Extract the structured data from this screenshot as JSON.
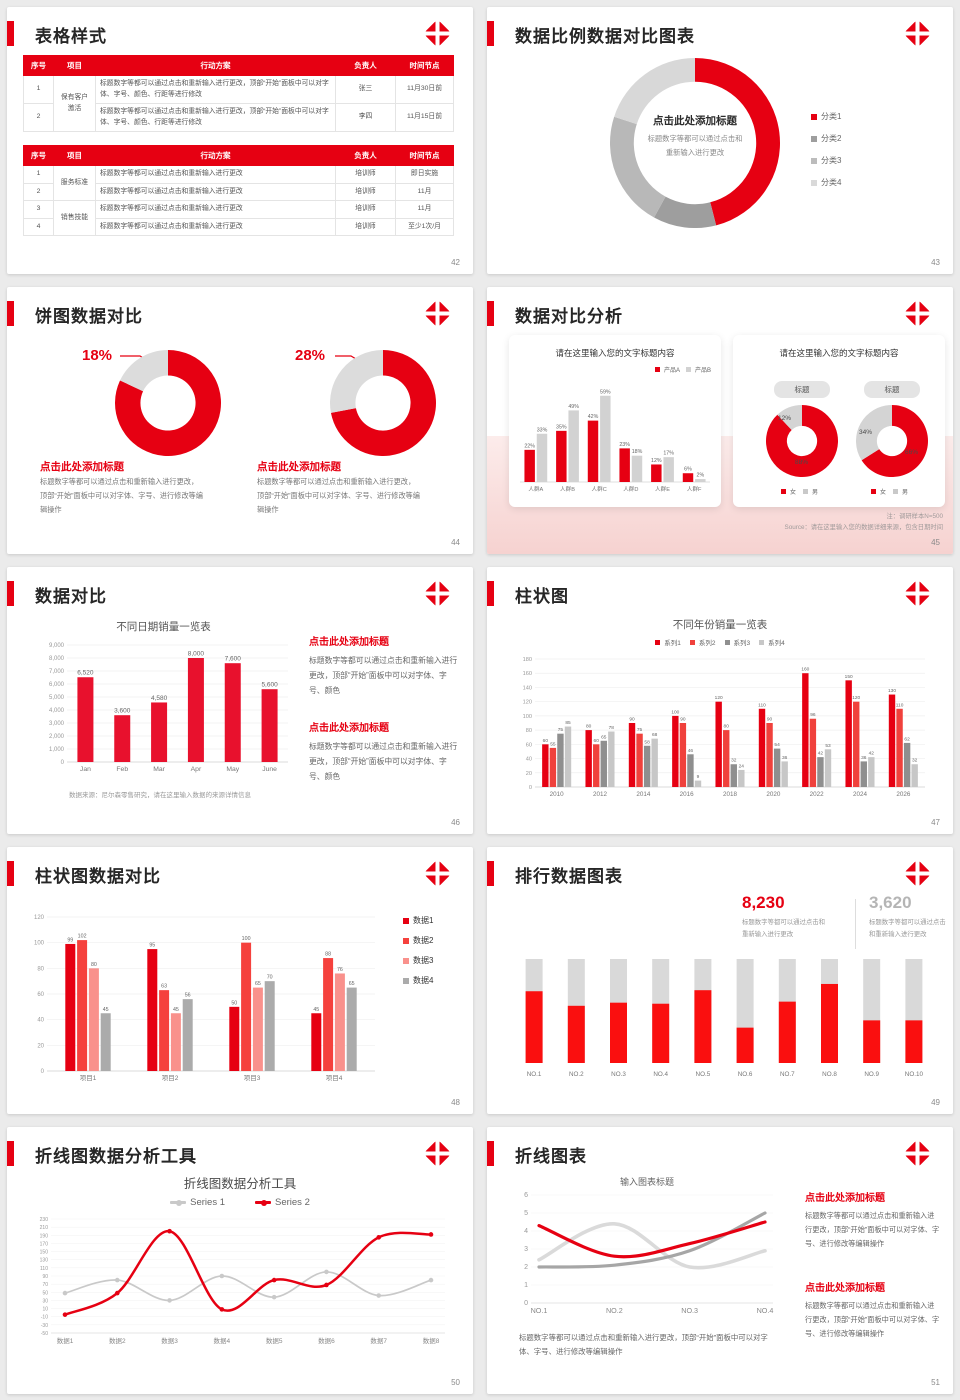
{
  "common": {
    "add_title": "点击此处添加标题",
    "body_edit_full": "标题数字等都可以通过点击和重新输入进行更改，顶部“开始”面板中可以对字体、字号、进行修改等编辑操作",
    "body_edit_color": "标题数字等都可以通过点击和重新输入进行更改，顶部“开始”面板中可以对字体、字号、颜色",
    "body_click": "标题数字等都可以通过点击和重新输入进行更改"
  },
  "colors": {
    "brand_red": "#e60012",
    "gray_light": "#d9d9d9",
    "gray_mid": "#b8b8b8",
    "gray_dark": "#9e9e9e"
  },
  "slides": {
    "s42": {
      "title": "表格样式",
      "page": "42",
      "table1": {
        "headers": [
          "序号",
          "项目",
          "行动方案",
          "负责人",
          "时间节点"
        ],
        "widths": [
          30,
          42,
          240,
          60,
          58
        ],
        "rows": [
          [
            {
              "t": "1"
            },
            {
              "t": "保有客户激活",
              "rs": 2
            },
            {
              "t": "标题数字等都可以通过点击和重新输入进行更改，顶部“开始”面板中可以对字体、字号、颜色、行距等进行修改",
              "al": "l"
            },
            {
              "t": "张三"
            },
            {
              "t": "11月30日前"
            }
          ],
          [
            {
              "t": "2"
            },
            {
              "t": "标题数字等都可以通过点击和重新输入进行更改，顶部“开始”面板中可以对字体、字号、颜色、行距等进行修改",
              "al": "l"
            },
            {
              "t": "李四"
            },
            {
              "t": "11月15日前"
            }
          ]
        ]
      },
      "table2": {
        "headers": [
          "序号",
          "项目",
          "行动方案",
          "负责人",
          "时间节点"
        ],
        "widths": [
          30,
          42,
          240,
          60,
          58
        ],
        "rows": [
          [
            {
              "t": "1"
            },
            {
              "t": "服务标准",
              "rs": 2
            },
            {
              "t": "标题数字等都可以通过点击和重新输入进行更改",
              "al": "l"
            },
            {
              "t": "培训师"
            },
            {
              "t": "即日实施"
            }
          ],
          [
            {
              "t": "2"
            },
            {
              "t": "标题数字等都可以通过点击和重新输入进行更改",
              "al": "l"
            },
            {
              "t": "培训师"
            },
            {
              "t": "11月"
            }
          ],
          [
            {
              "t": "3"
            },
            {
              "t": "销售技能",
              "rs": 2
            },
            {
              "t": "标题数字等都可以通过点击和重新输入进行更改",
              "al": "l"
            },
            {
              "t": "培训师"
            },
            {
              "t": "11月"
            }
          ],
          [
            {
              "t": "4"
            },
            {
              "t": "标题数字等都可以通过点击和重新输入进行更改",
              "al": "l"
            },
            {
              "t": "培训师"
            },
            {
              "t": "至少1次/月"
            }
          ]
        ]
      }
    },
    "s43": {
      "title": "数据比例数据对比图表",
      "page": "43",
      "center": {
        "title": "点击此处添加标题",
        "line1": "标题数字等都可以通过点击和",
        "line2": "重新输入进行更改"
      },
      "legend": [
        {
          "label": "分类1",
          "color": "#e60012"
        },
        {
          "label": "分类2",
          "color": "#9e9e9e"
        },
        {
          "label": "分类3",
          "color": "#bcbcbc"
        },
        {
          "label": "分类4",
          "color": "#d9d9d9"
        }
      ],
      "chart": {
        "type": "donut",
        "hole": 0.72,
        "values": [
          46,
          12,
          22,
          20
        ],
        "colors": [
          "#e60012",
          "#9e9e9e",
          "#b8b8b8",
          "#d8d8d8"
        ]
      }
    },
    "s44": {
      "title": "饼图数据对比",
      "page": "44",
      "left": {
        "pct": "18%",
        "chart": {
          "type": "donut",
          "hole": 0.52,
          "values": [
            82,
            18
          ],
          "colors": [
            "#e60012",
            "#dcdcdc"
          ]
        }
      },
      "right": {
        "pct": "28%",
        "chart": {
          "type": "donut",
          "hole": 0.52,
          "values": [
            72,
            28
          ],
          "colors": [
            "#e60012",
            "#dcdcdc"
          ]
        }
      }
    },
    "s45": {
      "title": "数据对比分析",
      "page": "45",
      "note1": "注：调研样本N=500",
      "note2": "Source：请在这里输入您的数据详细来源，包含日期时间",
      "card1": {
        "title": "请在这里输入您的文字标题内容",
        "legend": [
          {
            "label": "产品A",
            "color": "#e60012"
          },
          {
            "label": "产品B",
            "color": "#d2d2d2"
          }
        ],
        "chart": {
          "type": "bar",
          "pct": true,
          "ymax": 65,
          "categories": [
            "人群A",
            "人群B",
            "人群C",
            "人群D",
            "人群E",
            "人群F"
          ],
          "series": [
            {
              "name": "产品A",
              "color": "#e60012",
              "values": [
                22,
                35,
                42,
                23,
                12,
                6
              ]
            },
            {
              "name": "产品B",
              "color": "#d2d2d2",
              "values": [
                33,
                49,
                59,
                18,
                17,
                2
              ]
            }
          ]
        }
      },
      "card2": {
        "title": "请在这里输入您的文字标题内容",
        "badge": "标题",
        "donut1": {
          "type": "donut",
          "hole": 0.42,
          "values": [
            88,
            12
          ],
          "colors": [
            "#e60012",
            "#d4d4d4"
          ]
        },
        "donut2": {
          "type": "donut",
          "hole": 0.42,
          "values": [
            66,
            34
          ],
          "colors": [
            "#e60012",
            "#d4d4d4"
          ]
        },
        "labels1": {
          "a": "12%",
          "b": "88%"
        },
        "labels2": {
          "a": "34%",
          "b": "66%"
        },
        "legend": [
          {
            "label": "女",
            "color": "#e60012"
          },
          {
            "label": "男",
            "color": "#c9c9c9"
          }
        ]
      }
    },
    "s46": {
      "title": "数据对比",
      "page": "46",
      "chart_title": "不同日期销量一览表",
      "footnote": "数据来源：尼尔森零售研究，请在这里输入数据的来源详情信息",
      "chart": {
        "type": "bar",
        "ymax": 9000,
        "yticks": [
          [
            0,
            "0"
          ],
          [
            1000,
            "1,000"
          ],
          [
            2000,
            "2,000"
          ],
          [
            3000,
            "3,000"
          ],
          [
            4000,
            "4,000"
          ],
          [
            5000,
            "5,000"
          ],
          [
            6000,
            "6,000"
          ],
          [
            7000,
            "7,000"
          ],
          [
            8000,
            "8,000"
          ],
          [
            9000,
            "9,000"
          ]
        ],
        "categories": [
          "Jan",
          "Feb",
          "Mar",
          "Apr",
          "May",
          "June"
        ],
        "series": [
          {
            "name": "销量",
            "color": "#e8112d",
            "values": [
              6520,
              3600,
              4580,
              8000,
              7600,
              5600
            ],
            "labels": [
              "6,520",
              "3,600",
              "4,580",
              "8,000",
              "7,600",
              "5,600"
            ]
          }
        ]
      }
    },
    "s47": {
      "title": "柱状图",
      "page": "47",
      "chart_title": "不同年份销量一览表",
      "legend": [
        {
          "label": "系列1",
          "color": "#e60012"
        },
        {
          "label": "系列2",
          "color": "#f0413c"
        },
        {
          "label": "系列3",
          "color": "#8f8f8f"
        },
        {
          "label": "系列4",
          "color": "#c7c7c7"
        }
      ],
      "chart": {
        "type": "bar",
        "ymax": 180,
        "yticks": [
          [
            0,
            "0"
          ],
          [
            20,
            "20"
          ],
          [
            40,
            "40"
          ],
          [
            60,
            "60"
          ],
          [
            80,
            "80"
          ],
          [
            100,
            "100"
          ],
          [
            120,
            "120"
          ],
          [
            140,
            "140"
          ],
          [
            160,
            "160"
          ],
          [
            180,
            "180"
          ]
        ],
        "categories": [
          "2010",
          "2012",
          "2014",
          "2016",
          "2018",
          "2020",
          "2022",
          "2024",
          "2026"
        ],
        "series": [
          {
            "name": "系列1",
            "color": "#e60012",
            "values": [
              60,
              80,
              90,
              100,
              120,
              110,
              160,
              150,
              130
            ]
          },
          {
            "name": "系列2",
            "color": "#f0413c",
            "values": [
              55,
              60,
              75,
              90,
              80,
              90,
              96,
              120,
              110
            ]
          },
          {
            "name": "系列3",
            "color": "#8f8f8f",
            "values": [
              75,
              65,
              58,
              46,
              32,
              54,
              42,
              36,
              62
            ]
          },
          {
            "name": "系列4",
            "color": "#c7c7c7",
            "values": [
              85,
              78,
              68,
              9,
              24,
              36,
              53,
              42,
              32
            ]
          }
        ]
      }
    },
    "s48": {
      "title": "柱状图数据对比",
      "page": "48",
      "legend": [
        {
          "label": "数据1",
          "color": "#e60012"
        },
        {
          "label": "数据2",
          "color": "#f5413d"
        },
        {
          "label": "数据3",
          "color": "#f9918c"
        },
        {
          "label": "数据4",
          "color": "#ababab"
        }
      ],
      "chart": {
        "type": "bar",
        "ymax": 120,
        "yticks": [
          [
            0,
            "0"
          ],
          [
            20,
            "20"
          ],
          [
            40,
            "40"
          ],
          [
            60,
            "60"
          ],
          [
            80,
            "80"
          ],
          [
            100,
            "100"
          ],
          [
            120,
            "120"
          ]
        ],
        "categories": [
          "项目1",
          "项目2",
          "项目3",
          "项目4"
        ],
        "series": [
          {
            "name": "数据1",
            "color": "#e60012",
            "values": [
              99,
              95,
              50,
              45
            ]
          },
          {
            "name": "数据2",
            "color": "#f5413d",
            "values": [
              102,
              63,
              100,
              88
            ]
          },
          {
            "name": "数据3",
            "color": "#f9918c",
            "values": [
              80,
              45,
              65,
              76
            ]
          },
          {
            "name": "数据4",
            "color": "#ababab",
            "values": [
              45,
              56,
              70,
              65
            ]
          }
        ]
      }
    },
    "s49": {
      "title": "排行数据图表",
      "page": "49",
      "stat1": {
        "value": "8,230",
        "color": "#e60012"
      },
      "stat2": {
        "value": "3,620",
        "color": "#b5b5b5"
      },
      "chart": {
        "type": "stacked",
        "colors": [
          "#fa0f0f",
          "#d9d9d9"
        ],
        "categories": [
          "NO.1",
          "NO.2",
          "NO.3",
          "NO.4",
          "NO.5",
          "NO.6",
          "NO.7",
          "NO.8",
          "NO.9",
          "NO.10"
        ],
        "fractions": [
          0.69,
          0.55,
          0.58,
          0.57,
          0.7,
          0.34,
          0.59,
          0.76,
          0.41,
          0.41
        ]
      }
    },
    "s50": {
      "title": "折线图数据分析工具",
      "page": "50",
      "chart_title": "折线图数据分析工具",
      "legend": [
        {
          "label": "Series 1",
          "color": "#c9c9c9"
        },
        {
          "label": "Series 2",
          "color": "#e60012"
        }
      ],
      "chart": {
        "type": "line",
        "ymin": -50,
        "ymax": 230,
        "yticks": [
          [
            -50,
            "-50"
          ],
          [
            -30,
            "-30"
          ],
          [
            -10,
            "-10"
          ],
          [
            10,
            "10"
          ],
          [
            30,
            "30"
          ],
          [
            50,
            "50"
          ],
          [
            70,
            "70"
          ],
          [
            90,
            "90"
          ],
          [
            110,
            "110"
          ],
          [
            130,
            "130"
          ],
          [
            150,
            "150"
          ],
          [
            170,
            "170"
          ],
          [
            190,
            "190"
          ],
          [
            210,
            "210"
          ],
          [
            230,
            "230"
          ]
        ],
        "categories": [
          "数据1",
          "数据2",
          "数据3",
          "数据4",
          "数据5",
          "数据6",
          "数据7",
          "数据8"
        ],
        "series": [
          {
            "name": "Series 1",
            "color": "#c9c9c9",
            "w": 1.7,
            "m": true,
            "values": [
              48,
              80,
              30,
              90,
              38,
              100,
              42,
              80
            ]
          },
          {
            "name": "Series 2",
            "color": "#e60012",
            "w": 2.5,
            "m": true,
            "values": [
              -5,
              48,
              200,
              8,
              80,
              68,
              185,
              192
            ]
          }
        ]
      }
    },
    "s51": {
      "title": "折线图表",
      "page": "51",
      "chart_title": "输入图表标题",
      "chart": {
        "type": "line",
        "ymin": 0,
        "ymax": 6,
        "yticks": [
          [
            0,
            "0"
          ],
          [
            1,
            "1"
          ],
          [
            2,
            "2"
          ],
          [
            3,
            "3"
          ],
          [
            4,
            "4"
          ],
          [
            5,
            "5"
          ],
          [
            6,
            "6"
          ]
        ],
        "categories": [
          "NO.1",
          "NO.2",
          "NO.3",
          "NO.4"
        ],
        "series": [
          {
            "name": "浅灰",
            "color": "#dadada",
            "w": 3.6,
            "values": [
              2.4,
              4.4,
              2.0,
              2.9
            ]
          },
          {
            "name": "深灰",
            "color": "#a6a6a6",
            "w": 3.2,
            "values": [
              2.0,
              2.1,
              2.9,
              5.0
            ]
          },
          {
            "name": "红",
            "color": "#e60012",
            "w": 3.2,
            "values": [
              4.3,
              2.6,
              3.3,
              4.5
            ]
          }
        ]
      }
    }
  }
}
